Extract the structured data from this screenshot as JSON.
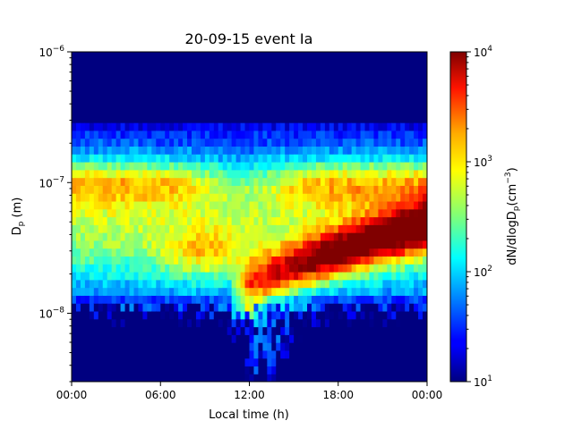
{
  "chart_data": {
    "type": "heatmap",
    "title": "20-09-15 event Ia",
    "xlabel": "Local time (h)",
    "ylabel_main": "D",
    "ylabel_sub": "p",
    "ylabel_unit": " (m)",
    "x_range_hours": [
      0,
      24
    ],
    "x_ticks": [
      {
        "h": 0,
        "label": "00:00"
      },
      {
        "h": 6,
        "label": "06:00"
      },
      {
        "h": 12,
        "label": "12:00"
      },
      {
        "h": 18,
        "label": "18:00"
      },
      {
        "h": 24,
        "label": "00:00"
      }
    ],
    "y_scale": "log",
    "y_range_m": [
      3e-09,
      1e-06
    ],
    "y_ticks": [
      {
        "exp": -6,
        "base": "10",
        "sup": "−6"
      },
      {
        "exp": -7,
        "base": "10",
        "sup": "−7"
      },
      {
        "exp": -8,
        "base": "10",
        "sup": "−8"
      }
    ],
    "colorbar": {
      "colormap": "jet",
      "scale": "log",
      "range": [
        10,
        10000
      ],
      "label_main": "dN/dlogD",
      "label_sub": "p",
      "label_unit_pre": "(cm",
      "label_unit_sup": "−3",
      "label_unit_post": ")",
      "ticks": [
        {
          "exp": 4,
          "base": "10",
          "sup": "4"
        },
        {
          "exp": 3,
          "base": "10",
          "sup": "3"
        },
        {
          "exp": 2,
          "base": "10",
          "sup": "2"
        },
        {
          "exp": 1,
          "base": "10",
          "sup": "1"
        }
      ]
    },
    "time_bins": 80,
    "size_bins": 42,
    "features": [
      {
        "name": "noise floor below 10 nm at night",
        "level_log10": 1.0
      },
      {
        "name": "accumulation mode ~80-100 nm early morning",
        "level_log10": 3.3
      },
      {
        "name": "nucleation onset around 12:00 at ~10 nm",
        "level_log10": 3.4
      },
      {
        "name": "growth banana to ~40 nm by 24:00",
        "level_log10": 4.0
      },
      {
        "name": "upper cutoff above ~300 nm",
        "level_log10": 1.0
      }
    ]
  }
}
